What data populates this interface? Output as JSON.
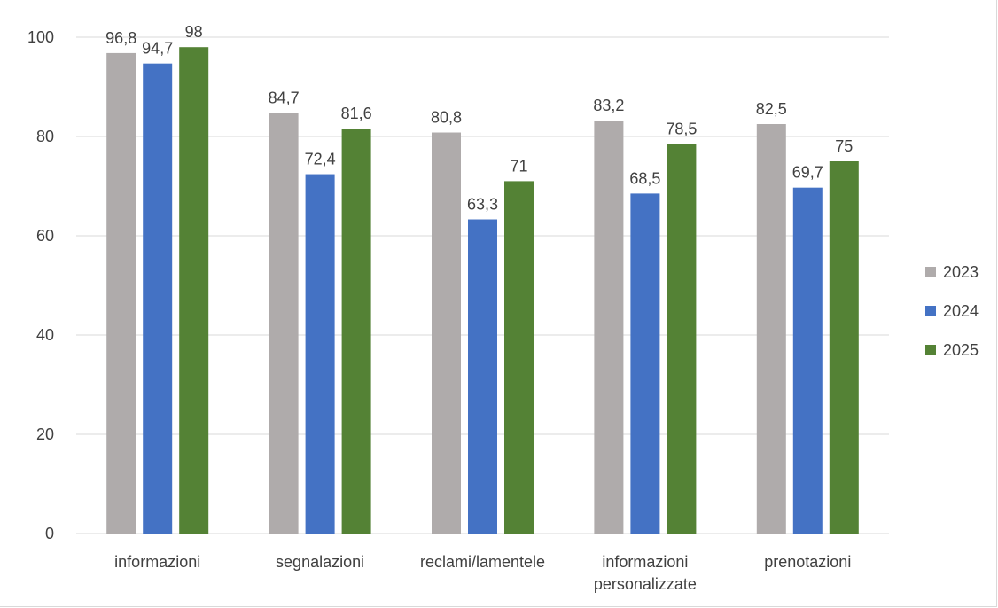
{
  "chart_data": {
    "type": "bar",
    "title": "",
    "xlabel": "",
    "ylabel": "",
    "ylim": [
      0,
      100
    ],
    "yticks": [
      0,
      20,
      40,
      60,
      80,
      100
    ],
    "grid": true,
    "legend_position": "right",
    "categories": [
      [
        "informazioni"
      ],
      [
        "segnalazioni"
      ],
      [
        "reclami/lamentele"
      ],
      [
        "informazioni",
        "personalizzate"
      ],
      [
        "prenotazioni"
      ]
    ],
    "series": [
      {
        "name": "2023",
        "color": "#afabab",
        "values": [
          96.8,
          84.7,
          80.8,
          83.2,
          82.5
        ],
        "labels": [
          "96,8",
          "84,7",
          "80,8",
          "83,2",
          "82,5"
        ]
      },
      {
        "name": "2024",
        "color": "#4472c4",
        "values": [
          94.7,
          72.4,
          63.3,
          68.5,
          69.7
        ],
        "labels": [
          "94,7",
          "72,4",
          "63,3",
          "68,5",
          "69,7"
        ]
      },
      {
        "name": "2025",
        "color": "#548235",
        "values": [
          98,
          81.6,
          71,
          78.5,
          75
        ],
        "labels": [
          "98",
          "81,6",
          "71",
          "78,5",
          "75"
        ]
      }
    ]
  }
}
